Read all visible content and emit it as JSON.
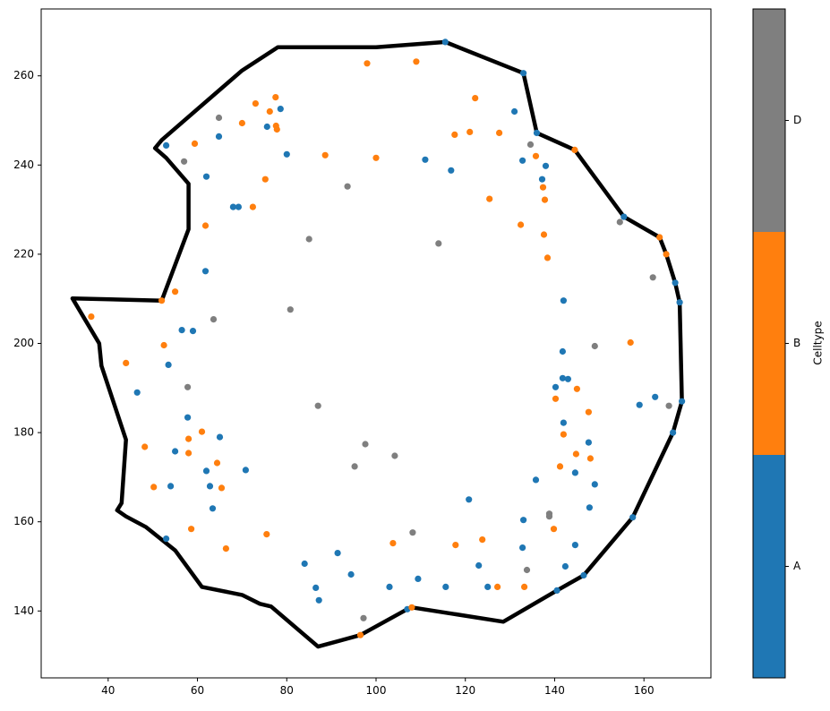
{
  "chart_data": {
    "type": "scatter",
    "title": "",
    "xlabel": "",
    "ylabel": "",
    "xlim": [
      25,
      175
    ],
    "ylim": [
      125,
      275
    ],
    "xticks": [
      40,
      60,
      80,
      100,
      120,
      140,
      160
    ],
    "yticks": [
      140,
      160,
      180,
      200,
      220,
      240,
      260
    ],
    "grid": false,
    "boundary": {
      "name": "boundary",
      "color": "#000000",
      "points": [
        [
          115.5,
          267.6
        ],
        [
          100,
          266.4
        ],
        [
          78,
          266.4
        ],
        [
          70,
          261.2
        ],
        [
          52,
          245.6
        ],
        [
          50.5,
          243.8
        ],
        [
          53,
          241.6
        ],
        [
          58,
          235.8
        ],
        [
          58,
          225.6
        ],
        [
          52,
          209.6
        ],
        [
          32,
          210.1
        ],
        [
          38,
          200
        ],
        [
          38.5,
          195
        ],
        [
          44,
          178.4
        ],
        [
          43,
          164.2
        ],
        [
          42,
          162.6
        ],
        [
          44,
          161.2
        ],
        [
          48.5,
          158.8
        ],
        [
          55,
          153.6
        ],
        [
          61,
          145.4
        ],
        [
          70,
          143.6
        ],
        [
          74,
          141.6
        ],
        [
          76.5,
          141
        ],
        [
          87,
          132
        ],
        [
          96.5,
          134.6
        ],
        [
          107,
          140.4
        ],
        [
          108,
          140.8
        ],
        [
          128.5,
          137.6
        ],
        [
          140.5,
          144.6
        ],
        [
          146.5,
          148
        ],
        [
          157.5,
          161
        ],
        [
          166.5,
          180
        ],
        [
          168.5,
          187
        ],
        [
          168,
          209.2
        ],
        [
          167,
          213.6
        ],
        [
          165,
          220
        ],
        [
          163.5,
          223.8
        ],
        [
          155.5,
          228.4
        ],
        [
          144.5,
          243.4
        ],
        [
          136,
          247.2
        ],
        [
          133,
          260.6
        ],
        [
          115.5,
          267.6
        ]
      ]
    },
    "colorbar": {
      "label": "Celltype",
      "categories": [
        "A",
        "B",
        "D"
      ],
      "colors": [
        "#1f77b4",
        "#ff7f0e",
        "#7f7f7f"
      ]
    },
    "series": [
      {
        "name": "A",
        "color": "#1f77b4",
        "points": [
          [
            53,
            244.4
          ],
          [
            62,
            237.4
          ],
          [
            64.8,
            246.4
          ],
          [
            68,
            230.6
          ],
          [
            69.2,
            230.6
          ],
          [
            75.6,
            248.6
          ],
          [
            78.6,
            252.6
          ],
          [
            80,
            242.4
          ],
          [
            61.8,
            216.2
          ],
          [
            56.5,
            203
          ],
          [
            59,
            202.8
          ],
          [
            53.5,
            195.2
          ],
          [
            46.5,
            189
          ],
          [
            57.8,
            183.4
          ],
          [
            55,
            175.8
          ],
          [
            65,
            179
          ],
          [
            62,
            171.4
          ],
          [
            70.8,
            171.6
          ],
          [
            54,
            168
          ],
          [
            62.8,
            168
          ],
          [
            63.4,
            163
          ],
          [
            53,
            156.2
          ],
          [
            84,
            150.6
          ],
          [
            86.5,
            145.2
          ],
          [
            87.2,
            142.4
          ],
          [
            91.4,
            153
          ],
          [
            94.4,
            148.2
          ],
          [
            103,
            145.4
          ],
          [
            107,
            140.4
          ],
          [
            109.4,
            147.2
          ],
          [
            111,
            241.2
          ],
          [
            115.6,
            145.4
          ],
          [
            115.5,
            267.6
          ],
          [
            116.8,
            238.8
          ],
          [
            120.8,
            165
          ],
          [
            123,
            150.2
          ],
          [
            125,
            145.4
          ],
          [
            131,
            252
          ],
          [
            133,
            260.6
          ],
          [
            132.8,
            241
          ],
          [
            133,
            160.4
          ],
          [
            132.8,
            154.2
          ],
          [
            135.8,
            169.4
          ],
          [
            136,
            247.2
          ],
          [
            137.2,
            236.8
          ],
          [
            138,
            239.8
          ],
          [
            140.2,
            190.2
          ],
          [
            140.5,
            144.6
          ],
          [
            141.8,
            198.2
          ],
          [
            141.8,
            192.2
          ],
          [
            142,
            209.6
          ],
          [
            142,
            182.2
          ],
          [
            142.4,
            150
          ],
          [
            143,
            192
          ],
          [
            144.6,
            171
          ],
          [
            144.6,
            154.8
          ],
          [
            146.5,
            148
          ],
          [
            147.6,
            177.8
          ],
          [
            147.8,
            163.2
          ],
          [
            149,
            168.4
          ],
          [
            155.5,
            228.4
          ],
          [
            157.5,
            161
          ],
          [
            159,
            186.2
          ],
          [
            162.5,
            188
          ],
          [
            166.5,
            180
          ],
          [
            167,
            213.6
          ],
          [
            168,
            209.2
          ],
          [
            168.5,
            187
          ]
        ]
      },
      {
        "name": "B",
        "color": "#ff7f0e",
        "points": [
          [
            36.2,
            206
          ],
          [
            44,
            195.6
          ],
          [
            48.2,
            176.8
          ],
          [
            50.2,
            167.8
          ],
          [
            52,
            209.6
          ],
          [
            52.5,
            199.6
          ],
          [
            55,
            211.6
          ],
          [
            58,
            178.6
          ],
          [
            58,
            175.4
          ],
          [
            58.6,
            158.4
          ],
          [
            59.4,
            244.8
          ],
          [
            61,
            180.2
          ],
          [
            61.8,
            226.4
          ],
          [
            64.4,
            173.2
          ],
          [
            65.4,
            167.6
          ],
          [
            66.4,
            154
          ],
          [
            70,
            249.4
          ],
          [
            72.4,
            230.6
          ],
          [
            73,
            253.8
          ],
          [
            75.2,
            236.8
          ],
          [
            75.5,
            157.2
          ],
          [
            76.2,
            252
          ],
          [
            77.5,
            255.2
          ],
          [
            77.6,
            248.8
          ],
          [
            77.8,
            248
          ],
          [
            88.6,
            242.2
          ],
          [
            96.5,
            134.6
          ],
          [
            98,
            262.8
          ],
          [
            100,
            241.6
          ],
          [
            103.8,
            155.2
          ],
          [
            108,
            140.8
          ],
          [
            109,
            263.2
          ],
          [
            117.6,
            246.8
          ],
          [
            117.8,
            154.8
          ],
          [
            121,
            247.4
          ],
          [
            122.2,
            255
          ],
          [
            123.8,
            156
          ],
          [
            125.4,
            232.4
          ],
          [
            127.2,
            145.4
          ],
          [
            127.6,
            247.2
          ],
          [
            132.4,
            226.6
          ],
          [
            133.2,
            145.4
          ],
          [
            135.8,
            242
          ],
          [
            137.4,
            235
          ],
          [
            137.6,
            224.4
          ],
          [
            137.8,
            232.2
          ],
          [
            138.4,
            219.2
          ],
          [
            139.8,
            158.4
          ],
          [
            140.2,
            187.6
          ],
          [
            141.2,
            172.4
          ],
          [
            142,
            179.6
          ],
          [
            144.5,
            243.4
          ],
          [
            144.8,
            175.2
          ],
          [
            145,
            189.8
          ],
          [
            147.6,
            184.6
          ],
          [
            148,
            174.2
          ],
          [
            157,
            200.2
          ],
          [
            163.5,
            223.8
          ],
          [
            165,
            220
          ]
        ]
      },
      {
        "name": "D",
        "color": "#7f7f7f",
        "points": [
          [
            57,
            240.8
          ],
          [
            57.8,
            190.2
          ],
          [
            63.6,
            205.4
          ],
          [
            64.8,
            250.6
          ],
          [
            80.8,
            207.6
          ],
          [
            85,
            223.4
          ],
          [
            87,
            186
          ],
          [
            93.6,
            235.2
          ],
          [
            95.2,
            172.4
          ],
          [
            97.2,
            138.4
          ],
          [
            97.6,
            177.4
          ],
          [
            104.2,
            174.8
          ],
          [
            108.2,
            157.6
          ],
          [
            114,
            222.4
          ],
          [
            133.8,
            149.2
          ],
          [
            134.6,
            244.6
          ],
          [
            138.8,
            161.8
          ],
          [
            138.8,
            161.2
          ],
          [
            149,
            199.4
          ],
          [
            154.6,
            227.2
          ],
          [
            162,
            214.8
          ],
          [
            165.6,
            186
          ]
        ]
      }
    ]
  }
}
